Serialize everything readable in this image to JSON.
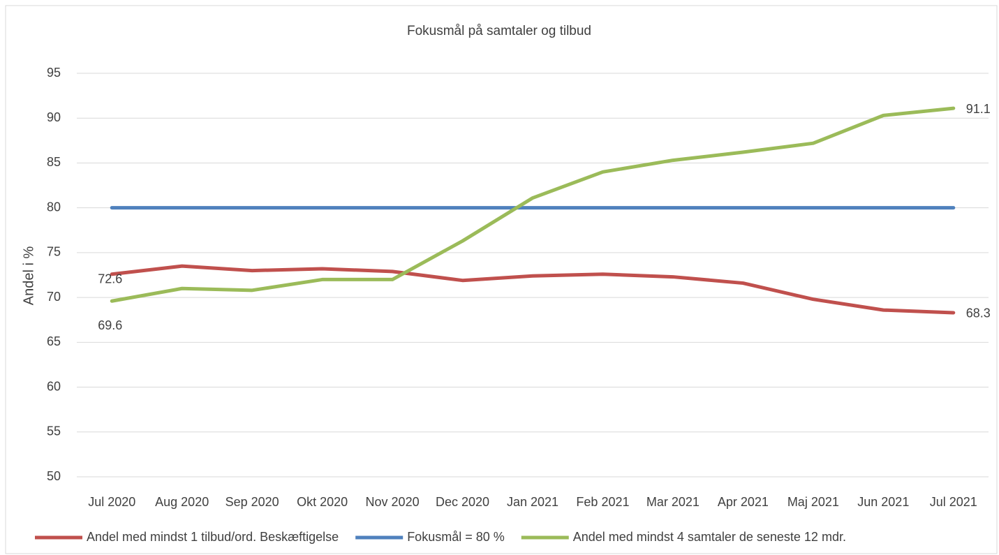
{
  "chart_data": {
    "type": "line",
    "title": "Fokusmål på samtaler og tilbud",
    "y_label": "Andel i %",
    "categories": [
      "Jul 2020",
      "Aug 2020",
      "Sep 2020",
      "Okt 2020",
      "Nov 2020",
      "Dec 2020",
      "Jan 2021",
      "Feb 2021",
      "Mar 2021",
      "Apr 2021",
      "Maj 2021",
      "Jun 2021",
      "Jul 2021"
    ],
    "series": [
      {
        "name": "Andel med mindst 1 tilbud/ord. Beskæftigelse",
        "color": "#c0504d",
        "values": [
          72.6,
          73.5,
          73.0,
          73.2,
          72.9,
          71.9,
          72.4,
          72.6,
          72.3,
          71.6,
          69.8,
          68.6,
          68.3
        ],
        "value_labels": [
          "72.6",
          null,
          null,
          null,
          null,
          null,
          null,
          null,
          null,
          null,
          null,
          null,
          "68.3"
        ]
      },
      {
        "name": "Fokusmål = 80 %",
        "color": "#4f81bd",
        "values": [
          80,
          80,
          80,
          80,
          80,
          80,
          80,
          80,
          80,
          80,
          80,
          80,
          80
        ]
      },
      {
        "name": "Andel med mindst 4 samtaler de seneste 12 mdr.",
        "color": "#9bbb59",
        "values": [
          69.6,
          71.0,
          70.8,
          72.0,
          72.0,
          76.3,
          81.1,
          84.0,
          85.3,
          86.2,
          87.2,
          90.3,
          91.1
        ],
        "value_labels": [
          "69.6",
          null,
          null,
          null,
          null,
          null,
          null,
          null,
          null,
          null,
          null,
          null,
          "91.1"
        ]
      }
    ],
    "ylim": [
      50,
      95
    ],
    "yticks": [
      50,
      55,
      60,
      65,
      70,
      75,
      80,
      85,
      90,
      95
    ],
    "grid": true,
    "legend": "bottom"
  }
}
